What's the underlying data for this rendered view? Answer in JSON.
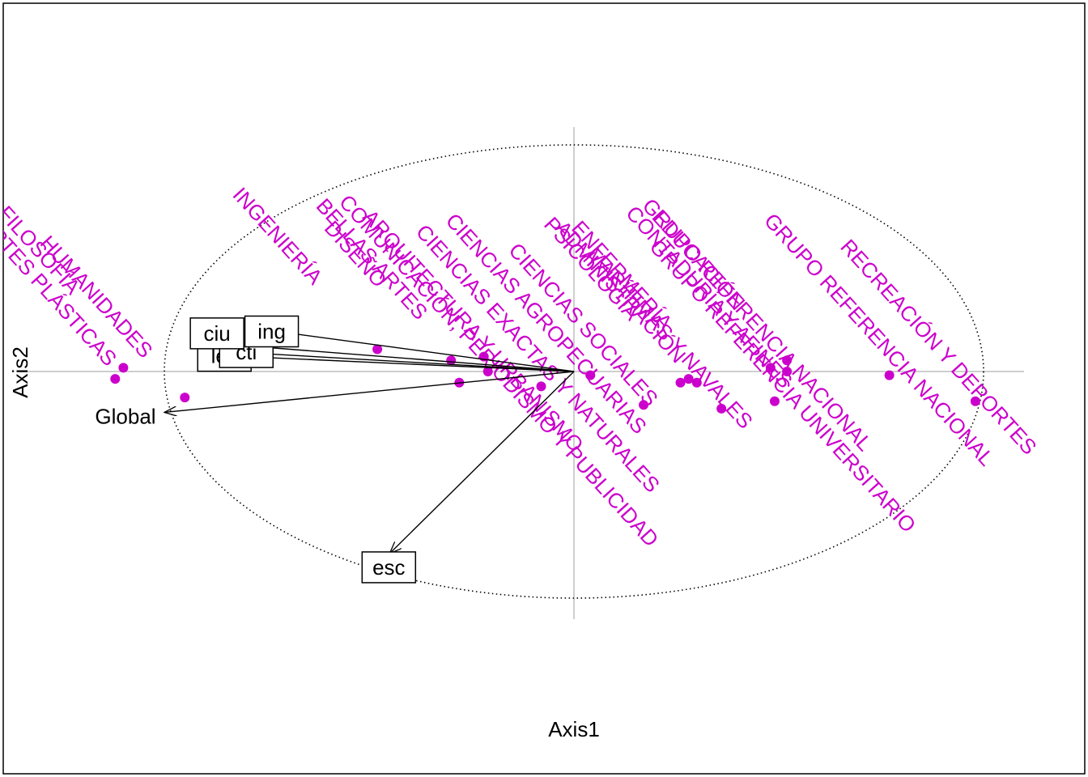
{
  "chart_data": {
    "type": "scatter",
    "subtype": "biplot",
    "title": "",
    "xlabel": "Axis1",
    "ylabel": "Axis2",
    "xlim": [
      -1.35,
      1.35
    ],
    "ylim": [
      -1.02,
      1.0
    ],
    "axes_lines_through_origin": true,
    "correlation_circle": {
      "radius_x": 1.0,
      "radius_y": 0.61,
      "style": "dotted"
    },
    "colors": {
      "points": "#cc00cc",
      "arrows": "#000000",
      "axes": "#bebebe",
      "frame": "#000000"
    },
    "variables": [
      {
        "name": "ing",
        "x": -0.74,
        "y": 0.11,
        "boxed": true
      },
      {
        "name": "cti",
        "x": -0.79,
        "y": 0.05,
        "boxed": true
      },
      {
        "name": "lec",
        "x": -0.8,
        "y": 0.04,
        "boxed": true
      },
      {
        "name": "ciu",
        "x": -0.81,
        "y": 0.07,
        "boxed": true
      },
      {
        "name": "Global",
        "x": -1.0,
        "y": -0.11,
        "boxed": false
      },
      {
        "name": "esc",
        "x": -0.45,
        "y": -0.49,
        "boxed": true
      }
    ],
    "points": [
      {
        "label": "HUMANIDADES",
        "x": -0.95,
        "y": -0.07
      },
      {
        "label": "ARTES PLÁSTICAS",
        "x": -1.12,
        "y": -0.02
      },
      {
        "label": "FILOSOFÍA",
        "x": -1.1,
        "y": 0.01
      },
      {
        "label": "INGENIERÍA",
        "x": -0.48,
        "y": 0.06
      },
      {
        "label": "BELLAS ARTES",
        "x": -0.3,
        "y": 0.03
      },
      {
        "label": "ARQUITECTURA Y URBANISMO",
        "x": -0.21,
        "y": 0.0
      },
      {
        "label": "COMUNICACIÓN, PERIODISMO Y PUBLICIDAD",
        "x": -0.22,
        "y": 0.04
      },
      {
        "label": "DISEÑO",
        "x": -0.28,
        "y": -0.03
      },
      {
        "label": "CIENCIAS EXACTAS Y NATURALES",
        "x": -0.08,
        "y": -0.04
      },
      {
        "label": "CIENCIAS AGROPECUARIAS",
        "x": 0.04,
        "y": -0.01
      },
      {
        "label": "CIENCIAS SOCIALES",
        "x": 0.17,
        "y": -0.09
      },
      {
        "label": "ENFERMERÍA",
        "x": 0.3,
        "y": -0.03
      },
      {
        "label": "PSICOLOGÍA",
        "x": 0.28,
        "y": -0.02
      },
      {
        "label": "MARÍTIMAS Y NAVALES",
        "x": 0.36,
        "y": -0.1
      },
      {
        "label": "ADMINISTRACIÓN",
        "x": 0.26,
        "y": -0.03
      },
      {
        "label": "CONTADURÍA Y AFINES",
        "x": 0.48,
        "y": 0.01
      },
      {
        "label": "EDUCACIÓN",
        "x": 0.52,
        "y": 0.0
      },
      {
        "label": "GRUPO REFERENCIA UNIVERSITARIO",
        "x": 0.49,
        "y": -0.08
      },
      {
        "label": "GRUPO REFERENCIA NACIONAL",
        "x": 0.52,
        "y": 0.03
      },
      {
        "label": "RECREACIÓN Y DEPORTES",
        "x": 0.98,
        "y": -0.08
      },
      {
        "label": "GRUPO REFERENCIA NACIONAL",
        "x": 0.77,
        "y": -0.01
      }
    ]
  }
}
